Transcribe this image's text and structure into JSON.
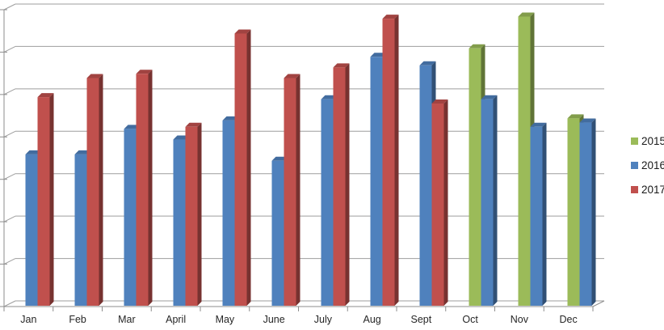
{
  "chart_data": {
    "type": "bar",
    "style": "3d-clustered-column",
    "title": "",
    "xlabel": "",
    "ylabel": "",
    "categories": [
      "Jan",
      "Feb",
      "Mar",
      "April",
      "May",
      "June",
      "July",
      "Aug",
      "Sept",
      "Oct",
      "Nov",
      "Dec"
    ],
    "series": [
      {
        "name": "2015",
        "color": "#9BBB59",
        "values": [
          null,
          null,
          null,
          null,
          null,
          null,
          null,
          null,
          null,
          60.5,
          68,
          44
        ]
      },
      {
        "name": "2016",
        "color": "#4F81BD",
        "values": [
          35.5,
          35.5,
          41.5,
          39,
          43.5,
          34,
          48.5,
          58.5,
          56.5,
          48.5,
          42,
          43
        ]
      },
      {
        "name": "2017",
        "color": "#C0504D",
        "values": [
          49,
          53.5,
          54.5,
          42,
          64,
          53.5,
          56,
          67.5,
          47.5,
          null,
          null,
          null
        ]
      }
    ],
    "ylim": [
      0,
      70
    ],
    "gridline_step": 10,
    "grid": true,
    "value_axis_labels_shown": false,
    "legend_position": "right"
  },
  "legend": {
    "items": [
      {
        "label": "2015",
        "color": "#9BBB59"
      },
      {
        "label": "2016",
        "color": "#4F81BD"
      },
      {
        "label": "2017",
        "color": "#C0504D"
      }
    ]
  },
  "colors": {
    "background": "#FFFFFF",
    "gridline": "#9E9E9E",
    "axis": "#8E8E8E",
    "label_text": "#262626",
    "legend_text": "#1A1A1A"
  }
}
